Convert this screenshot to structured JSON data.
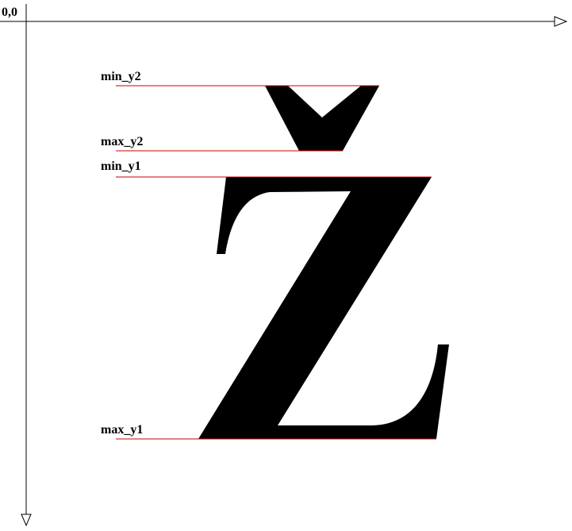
{
  "origin_label": "0,0",
  "guides": {
    "min_y2": "min_y2",
    "max_y2": "max_y2",
    "min_y1": "min_y1",
    "max_y1": "max_y1"
  },
  "colors": {
    "axis": "#000000",
    "guide_line": "#cc0000",
    "glyph": "#000000"
  }
}
